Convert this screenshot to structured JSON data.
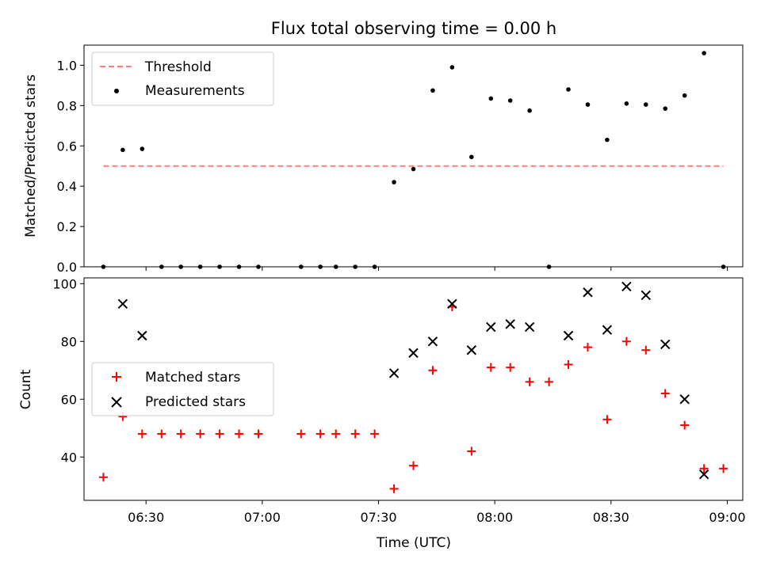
{
  "chart_data": [
    {
      "type": "scatter",
      "title": "Flux total observing time = 0.00 h",
      "xlabel": "",
      "ylabel": "Matched/Predicted stars",
      "xlim": [
        "06:14",
        "09:04"
      ],
      "ylim": [
        0,
        1.1
      ],
      "yticks": [
        0.0,
        0.2,
        0.4,
        0.6,
        0.8,
        1.0
      ],
      "ytick_labels": [
        "0.0",
        "0.2",
        "0.4",
        "0.6",
        "0.8",
        "1.0"
      ],
      "grid": false,
      "legend_position": "top-left",
      "series": [
        {
          "name": "Threshold",
          "kind": "line",
          "style": "dashed",
          "color": "#ff7f7f",
          "points": [
            {
              "x": "06:19",
              "y": 0.5
            },
            {
              "x": "08:59",
              "y": 0.5
            }
          ]
        },
        {
          "name": "Measurements",
          "kind": "scatter",
          "marker": "dot",
          "color": "#000000",
          "points": [
            {
              "x": "06:19",
              "y": 0.0
            },
            {
              "x": "06:24",
              "y": 0.58
            },
            {
              "x": "06:29",
              "y": 0.585
            },
            {
              "x": "06:34",
              "y": 0.0
            },
            {
              "x": "06:39",
              "y": 0.0
            },
            {
              "x": "06:44",
              "y": 0.0
            },
            {
              "x": "06:49",
              "y": 0.0
            },
            {
              "x": "06:54",
              "y": 0.0
            },
            {
              "x": "06:59",
              "y": 0.0
            },
            {
              "x": "07:10",
              "y": 0.0
            },
            {
              "x": "07:15",
              "y": 0.0
            },
            {
              "x": "07:19",
              "y": 0.0
            },
            {
              "x": "07:24",
              "y": 0.0
            },
            {
              "x": "07:29",
              "y": 0.0
            },
            {
              "x": "07:34",
              "y": 0.42
            },
            {
              "x": "07:39",
              "y": 0.485
            },
            {
              "x": "07:44",
              "y": 0.875
            },
            {
              "x": "07:49",
              "y": 0.99
            },
            {
              "x": "07:54",
              "y": 0.545
            },
            {
              "x": "07:59",
              "y": 0.835
            },
            {
              "x": "08:04",
              "y": 0.825
            },
            {
              "x": "08:09",
              "y": 0.775
            },
            {
              "x": "08:14",
              "y": 0.0
            },
            {
              "x": "08:19",
              "y": 0.88
            },
            {
              "x": "08:24",
              "y": 0.805
            },
            {
              "x": "08:29",
              "y": 0.63
            },
            {
              "x": "08:34",
              "y": 0.81
            },
            {
              "x": "08:39",
              "y": 0.805
            },
            {
              "x": "08:44",
              "y": 0.785
            },
            {
              "x": "08:49",
              "y": 0.85
            },
            {
              "x": "08:54",
              "y": 1.06
            },
            {
              "x": "08:59",
              "y": 0.0
            }
          ]
        }
      ]
    },
    {
      "type": "scatter",
      "title": "",
      "xlabel": "Time (UTC)",
      "ylabel": "Count",
      "xlim": [
        "06:14",
        "09:04"
      ],
      "ylim": [
        25,
        102
      ],
      "xticks": [
        "06:30",
        "07:00",
        "07:30",
        "08:00",
        "08:30",
        "09:00"
      ],
      "xtick_labels": [
        "06:30",
        "07:00",
        "07:30",
        "08:00",
        "08:30",
        "09:00"
      ],
      "yticks": [
        40,
        60,
        80,
        100
      ],
      "ytick_labels": [
        "40",
        "60",
        "80",
        "100"
      ],
      "grid": false,
      "legend_position": "center-left",
      "series": [
        {
          "name": "Matched stars",
          "kind": "scatter",
          "marker": "plus",
          "color": "#ff0000",
          "points": [
            {
              "x": "06:19",
              "y": 33
            },
            {
              "x": "06:24",
              "y": 54
            },
            {
              "x": "06:29",
              "y": 48
            },
            {
              "x": "06:34",
              "y": 48
            },
            {
              "x": "06:39",
              "y": 48
            },
            {
              "x": "06:44",
              "y": 48
            },
            {
              "x": "06:49",
              "y": 48
            },
            {
              "x": "06:54",
              "y": 48
            },
            {
              "x": "06:59",
              "y": 48
            },
            {
              "x": "07:10",
              "y": 48
            },
            {
              "x": "07:15",
              "y": 48
            },
            {
              "x": "07:19",
              "y": 48
            },
            {
              "x": "07:24",
              "y": 48
            },
            {
              "x": "07:29",
              "y": 48
            },
            {
              "x": "07:34",
              "y": 29
            },
            {
              "x": "07:39",
              "y": 37
            },
            {
              "x": "07:44",
              "y": 70
            },
            {
              "x": "07:49",
              "y": 92
            },
            {
              "x": "07:54",
              "y": 42
            },
            {
              "x": "07:59",
              "y": 71
            },
            {
              "x": "08:04",
              "y": 71
            },
            {
              "x": "08:09",
              "y": 66
            },
            {
              "x": "08:14",
              "y": 66
            },
            {
              "x": "08:19",
              "y": 72
            },
            {
              "x": "08:24",
              "y": 78
            },
            {
              "x": "08:29",
              "y": 53
            },
            {
              "x": "08:34",
              "y": 80
            },
            {
              "x": "08:39",
              "y": 77
            },
            {
              "x": "08:44",
              "y": 62
            },
            {
              "x": "08:49",
              "y": 51
            },
            {
              "x": "08:54",
              "y": 36
            },
            {
              "x": "08:59",
              "y": 36
            }
          ]
        },
        {
          "name": "Predicted stars",
          "kind": "scatter",
          "marker": "x",
          "color": "#000000",
          "points": [
            {
              "x": "06:24",
              "y": 93
            },
            {
              "x": "06:29",
              "y": 82
            },
            {
              "x": "07:34",
              "y": 69
            },
            {
              "x": "07:39",
              "y": 76
            },
            {
              "x": "07:44",
              "y": 80
            },
            {
              "x": "07:49",
              "y": 93
            },
            {
              "x": "07:54",
              "y": 77
            },
            {
              "x": "07:59",
              "y": 85
            },
            {
              "x": "08:04",
              "y": 86
            },
            {
              "x": "08:09",
              "y": 85
            },
            {
              "x": "08:19",
              "y": 82
            },
            {
              "x": "08:24",
              "y": 97
            },
            {
              "x": "08:29",
              "y": 84
            },
            {
              "x": "08:34",
              "y": 99
            },
            {
              "x": "08:39",
              "y": 96
            },
            {
              "x": "08:44",
              "y": 79
            },
            {
              "x": "08:49",
              "y": 60
            },
            {
              "x": "08:54",
              "y": 34
            }
          ]
        }
      ]
    }
  ]
}
